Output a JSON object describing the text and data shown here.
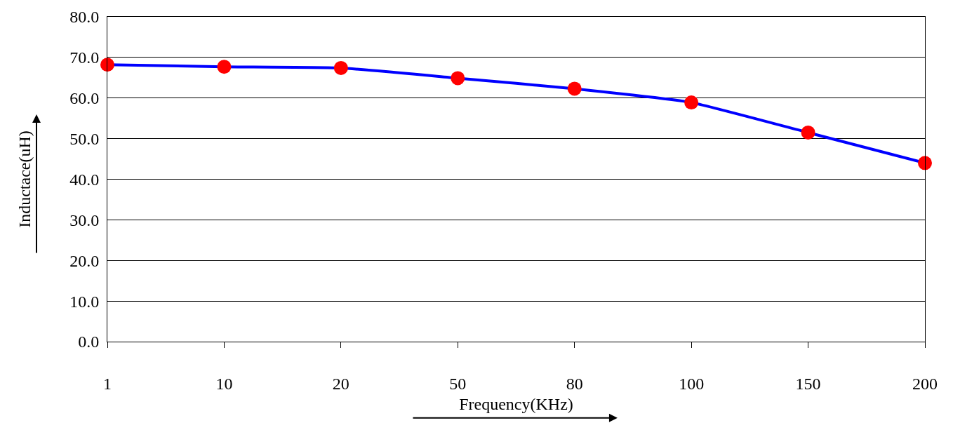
{
  "chart_data": {
    "type": "line",
    "xlabel": "Frequency(KHz)",
    "ylabel": "Inductace(uH)",
    "categories": [
      "1",
      "10",
      "20",
      "50",
      "80",
      "100",
      "150",
      "200"
    ],
    "series": [
      {
        "color": "#0000ff",
        "colors": [
          "#ff0000",
          "#ff0000",
          "#ff0000",
          "#ff0000",
          "#ff0000",
          "#ff0000",
          "#ff0000",
          "#ff0000"
        ],
        "values": [
          68.2,
          67.7,
          67.4,
          64.9,
          62.3,
          58.9,
          51.5,
          44.0
        ]
      }
    ],
    "ylim": [
      0,
      80
    ],
    "yticks": [
      {
        "value": 0,
        "label": "0.0"
      },
      {
        "value": 10,
        "label": "10.0"
      },
      {
        "value": 20,
        "label": "20.0"
      },
      {
        "value": 30,
        "label": "30.0"
      },
      {
        "value": 40,
        "label": "40.0"
      },
      {
        "value": 50,
        "label": "50.0"
      },
      {
        "value": 60,
        "label": "60.0"
      },
      {
        "value": 70,
        "label": "70.0"
      },
      {
        "value": 80,
        "label": "80.0"
      }
    ],
    "grid": "y",
    "marker": "circle",
    "line_style": "solid"
  }
}
